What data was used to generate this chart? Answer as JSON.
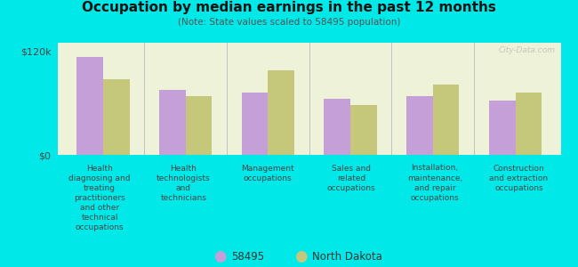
{
  "title": "Occupation by median earnings in the past 12 months",
  "subtitle": "(Note: State values scaled to 58495 population)",
  "background_color": "#00e8e8",
  "plot_bg_color": "#eef2d8",
  "categories": [
    "Health\ndiagnosing and\ntreating\npractitioners\nand other\ntechnical\noccupations",
    "Health\ntechnologists\nand\ntechnicians",
    "Management\noccupations",
    "Sales and\nrelated\noccupations",
    "Installation,\nmaintenance,\nand repair\noccupations",
    "Construction\nand extraction\noccupations"
  ],
  "values_58495": [
    113000,
    75000,
    72000,
    65000,
    68000,
    63000
  ],
  "values_nd": [
    88000,
    68000,
    98000,
    58000,
    82000,
    72000
  ],
  "color_58495": "#c49fd8",
  "color_nd": "#c5c87a",
  "ylim": [
    0,
    130000
  ],
  "yticks": [
    0,
    120000
  ],
  "ytick_labels": [
    "$0",
    "$120k"
  ],
  "legend_58495": "58495",
  "legend_nd": "North Dakota",
  "watermark": "City-Data.com"
}
